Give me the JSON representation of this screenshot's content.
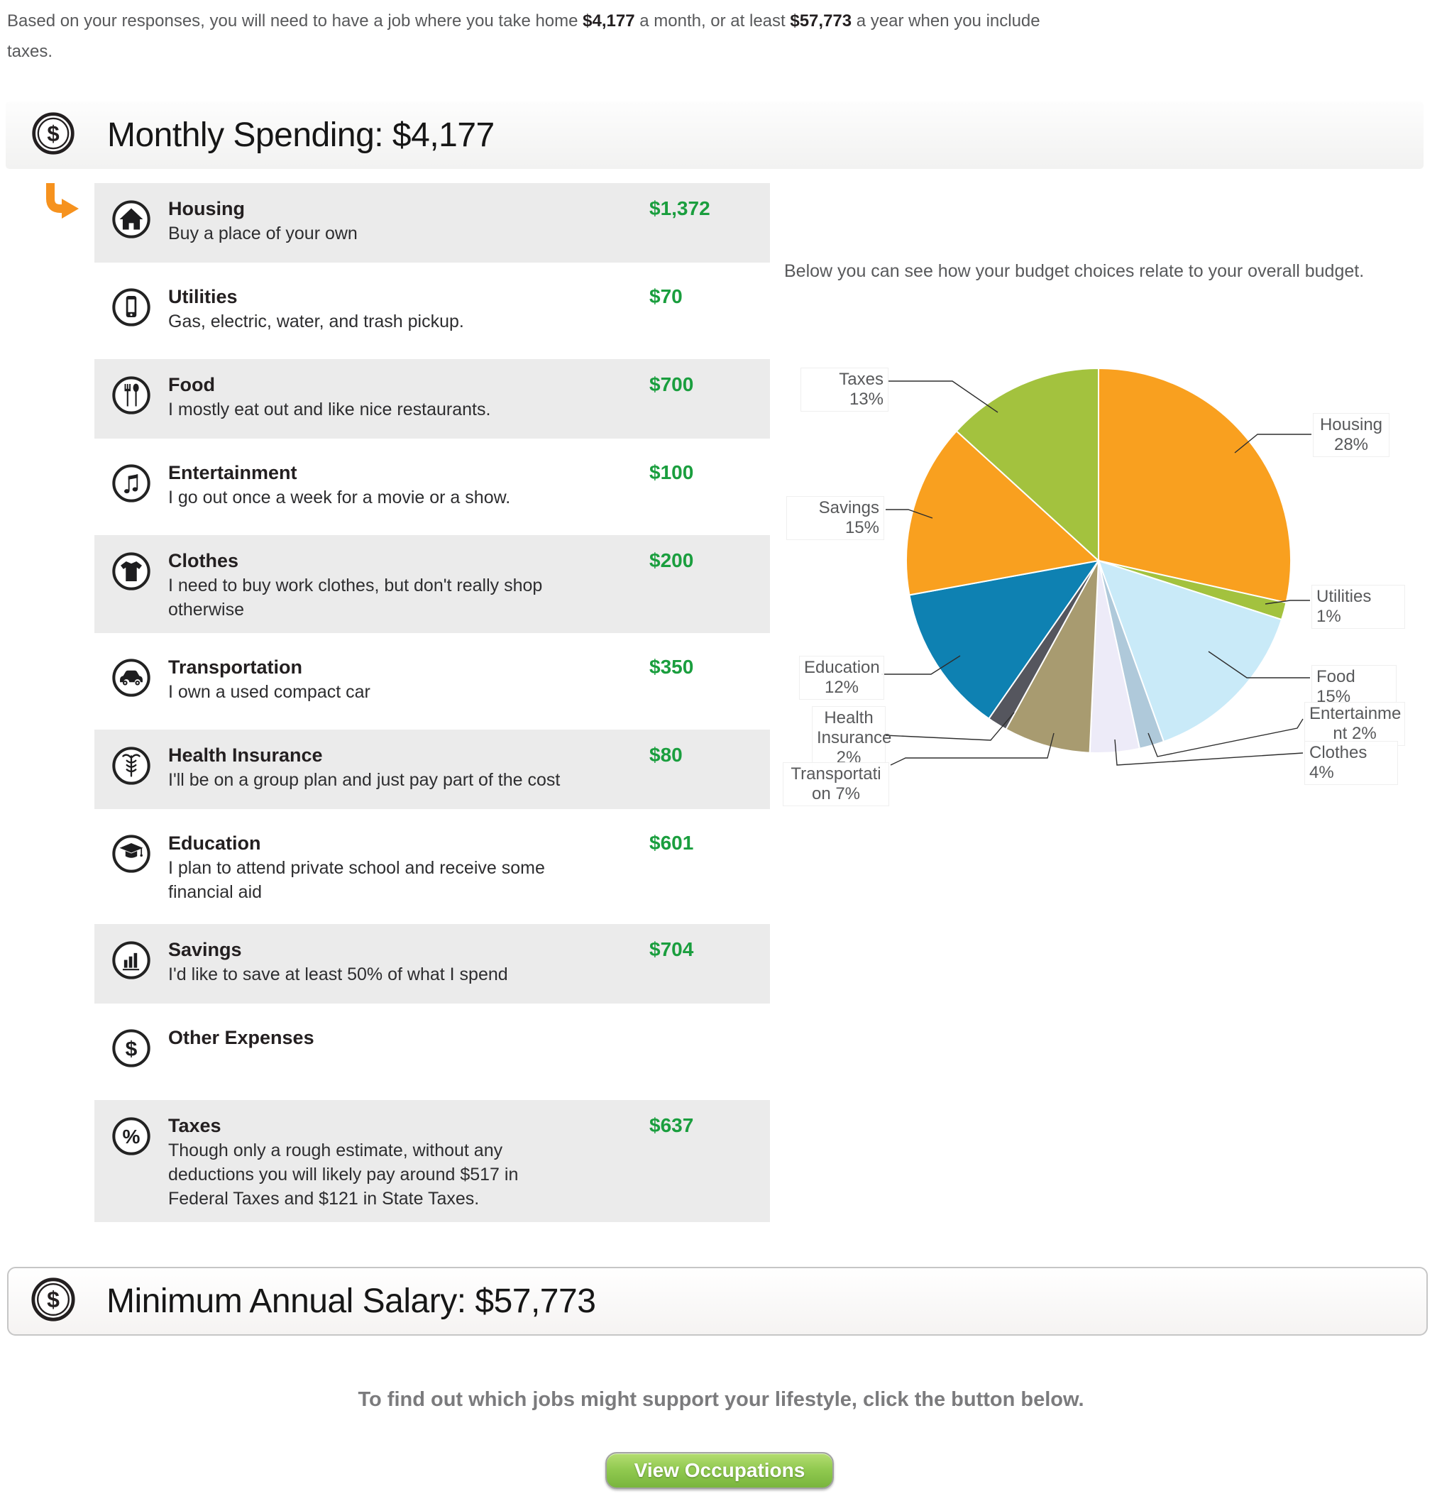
{
  "intro": {
    "pre": "Based on your responses, you will need to have a job where you take home ",
    "monthly_amount": "$4,177",
    "mid": " a month, or at least ",
    "annual_amount": "$57,773",
    "post": " a year when you include taxes."
  },
  "monthly_header": {
    "title": "Monthly Spending: $4,177",
    "icon": "dollar-circle-icon"
  },
  "categories": [
    {
      "id": "housing",
      "icon": "house-icon",
      "label": "Housing",
      "description": "Buy a place of your own",
      "amount": "$1,372"
    },
    {
      "id": "utilities",
      "icon": "mobile-phone-icon",
      "label": "Utilities",
      "description": "Gas, electric, water, and trash pickup.",
      "amount": "$70"
    },
    {
      "id": "food",
      "icon": "utensils-icon",
      "label": "Food",
      "description": "I mostly eat out and like nice restaurants.",
      "amount": "$700"
    },
    {
      "id": "entertainment",
      "icon": "music-notes-icon",
      "label": "Entertainment",
      "description": "I go out once a week for a movie or a show.",
      "amount": "$100"
    },
    {
      "id": "clothes",
      "icon": "tshirt-icon",
      "label": "Clothes",
      "description": "I need to buy work clothes, but don't really shop otherwise",
      "amount": "$200"
    },
    {
      "id": "transportation",
      "icon": "car-icon",
      "label": "Transportation",
      "description": "I own a used compact car",
      "amount": "$350"
    },
    {
      "id": "health-insurance",
      "icon": "caduceus-icon",
      "label": "Health Insurance",
      "description": "I'll be on a group plan and just pay part of the cost",
      "amount": "$80"
    },
    {
      "id": "education",
      "icon": "graduation-cap-icon",
      "label": "Education",
      "description": "I plan to attend private school and receive some financial aid",
      "amount": "$601"
    },
    {
      "id": "savings",
      "icon": "bar-chart-icon",
      "label": "Savings",
      "description": "I'd like to save at least 50% of what I spend",
      "amount": "$704"
    },
    {
      "id": "other-expenses",
      "icon": "dollar-icon",
      "label": "Other Expenses",
      "description": "",
      "amount": ""
    },
    {
      "id": "taxes",
      "icon": "percent-icon",
      "label": "Taxes",
      "description": "Though only a rough estimate, without any deductions you will likely pay around $517 in Federal Taxes and $121 in State Taxes.",
      "amount": "$637"
    }
  ],
  "chart_data": {
    "type": "pie",
    "title": "Below you can see how your budget choices relate to your overall budget.",
    "legend_position": "outside-callouts",
    "slices": [
      {
        "label": "Housing",
        "percent": 28,
        "value": 1372,
        "color": "#F9A01F",
        "label_lines": [
          "Housing",
          "28%"
        ]
      },
      {
        "label": "Utilities",
        "percent": 1,
        "value": 70,
        "color": "#A3C23E",
        "label_lines": [
          "Utilities 1%"
        ]
      },
      {
        "label": "Food",
        "percent": 15,
        "value": 700,
        "color": "#C9EAF8",
        "label_lines": [
          "Food 15%"
        ]
      },
      {
        "label": "Entertainment",
        "percent": 2,
        "value": 100,
        "color": "#AFC9DA",
        "label_lines": [
          "Entertainme",
          "nt 2%"
        ]
      },
      {
        "label": "Clothes",
        "percent": 4,
        "value": 200,
        "color": "#EDEBF8",
        "label_lines": [
          "Clothes 4%"
        ]
      },
      {
        "label": "Transportation",
        "percent": 7,
        "value": 350,
        "color": "#A89B70",
        "label_lines": [
          "Transportati",
          "on 7%"
        ]
      },
      {
        "label": "Health Insurance",
        "percent": 2,
        "value": 80,
        "color": "#55565E",
        "label_lines": [
          "Health",
          "Insurance",
          "2%"
        ]
      },
      {
        "label": "Education",
        "percent": 12,
        "value": 601,
        "color": "#0E81B2",
        "label_lines": [
          "Education",
          "12%"
        ]
      },
      {
        "label": "Savings",
        "percent": 15,
        "value": 704,
        "color": "#F9A01F",
        "label_lines": [
          "Savings 15%"
        ]
      },
      {
        "label": "Taxes",
        "percent": 13,
        "value": 637,
        "color": "#A3C23E",
        "label_lines": [
          "Taxes 13%"
        ]
      }
    ]
  },
  "salary_bar": {
    "title": "Minimum Annual Salary: $57,773",
    "icon": "dollar-circle-icon"
  },
  "footer": {
    "cta": "To find out which jobs might support your lifestyle, click the button below.",
    "button_label": "View Occupations"
  },
  "colors": {
    "amount_green": "#1A9E3E",
    "arrow_orange": "#F6921E",
    "row_gray": "#EBEBEB",
    "text_gray": "#58595B"
  }
}
